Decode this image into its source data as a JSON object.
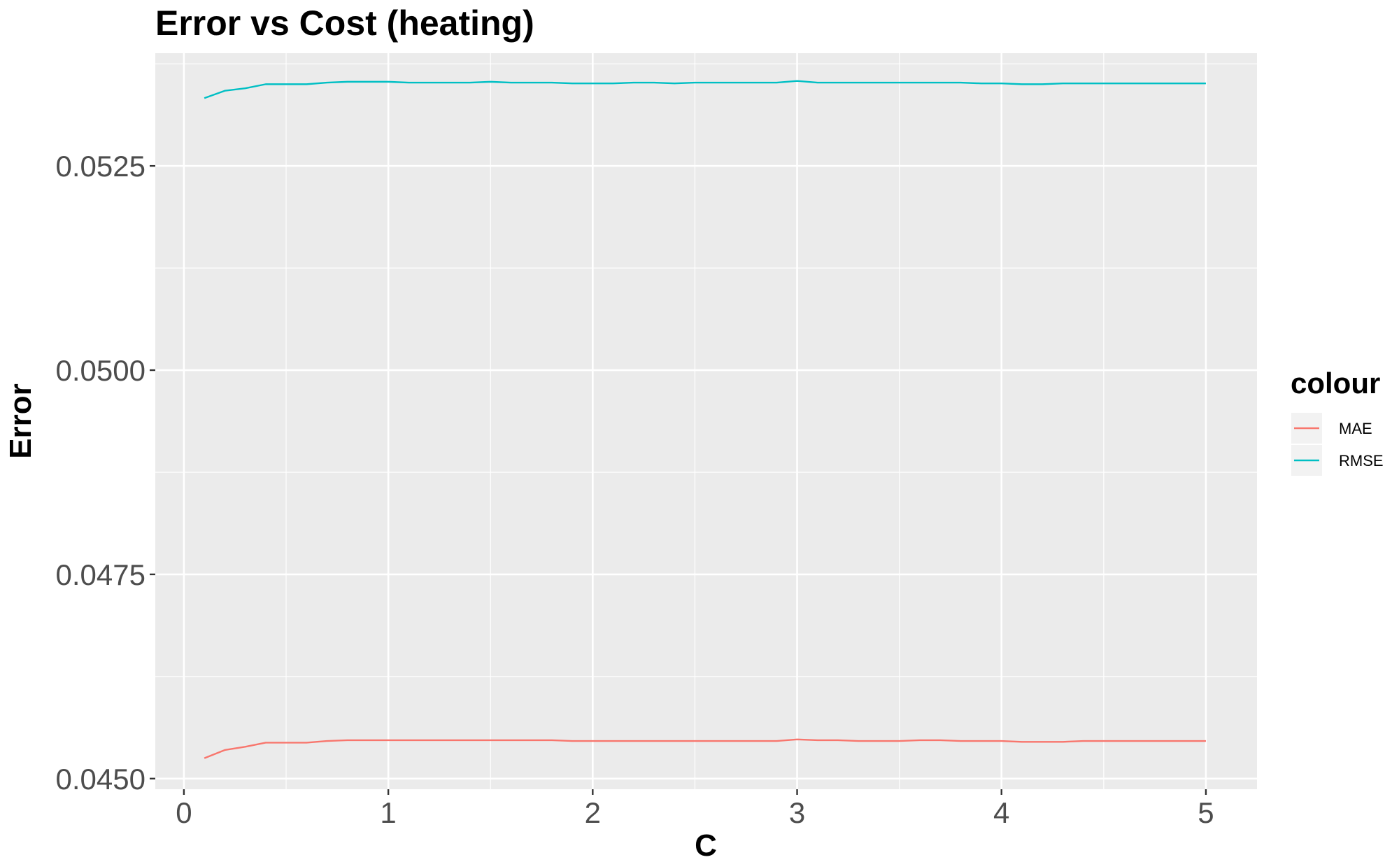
{
  "chart_data": {
    "type": "line",
    "title": "Error vs Cost (heating)",
    "xlabel": "C",
    "ylabel": "Error",
    "xlim": [
      -0.14,
      5.25
    ],
    "ylim": [
      0.04487,
      0.05388
    ],
    "x_ticks": [
      0,
      1,
      2,
      3,
      4,
      5
    ],
    "x_tick_labels": [
      "0",
      "1",
      "2",
      "3",
      "4",
      "5"
    ],
    "y_ticks": [
      0.045,
      0.0475,
      0.05,
      0.0525
    ],
    "y_tick_labels": [
      "0.0450",
      "0.0475",
      "0.0500",
      "0.0525"
    ],
    "grid": true,
    "legend_title": "colour",
    "legend_position": "right",
    "x": [
      0.1,
      0.2,
      0.3,
      0.4,
      0.5,
      0.6,
      0.7,
      0.8,
      0.9,
      1.0,
      1.1,
      1.2,
      1.3,
      1.4,
      1.5,
      1.6,
      1.7,
      1.8,
      1.9,
      2.0,
      2.1,
      2.2,
      2.3,
      2.4,
      2.5,
      2.6,
      2.7,
      2.8,
      2.9,
      3.0,
      3.1,
      3.2,
      3.3,
      3.4,
      3.5,
      3.6,
      3.7,
      3.8,
      3.9,
      4.0,
      4.1,
      4.2,
      4.3,
      4.4,
      4.5,
      4.6,
      4.7,
      4.8,
      4.9,
      5.0
    ],
    "series": [
      {
        "name": "MAE",
        "color": "#F8766D",
        "values": [
          0.04525,
          0.04535,
          0.04539,
          0.04544,
          0.04544,
          0.04544,
          0.04546,
          0.04547,
          0.04547,
          0.04547,
          0.04547,
          0.04547,
          0.04547,
          0.04547,
          0.04547,
          0.04547,
          0.04547,
          0.04547,
          0.04546,
          0.04546,
          0.04546,
          0.04546,
          0.04546,
          0.04546,
          0.04546,
          0.04546,
          0.04546,
          0.04546,
          0.04546,
          0.04548,
          0.04547,
          0.04547,
          0.04546,
          0.04546,
          0.04546,
          0.04547,
          0.04547,
          0.04546,
          0.04546,
          0.04546,
          0.04545,
          0.04545,
          0.04545,
          0.04546,
          0.04546,
          0.04546,
          0.04546,
          0.04546,
          0.04546,
          0.04546
        ]
      },
      {
        "name": "RMSE",
        "color": "#00BFC4",
        "values": [
          0.05333,
          0.05342,
          0.05345,
          0.0535,
          0.0535,
          0.0535,
          0.05352,
          0.05353,
          0.05353,
          0.05353,
          0.05352,
          0.05352,
          0.05352,
          0.05352,
          0.05353,
          0.05352,
          0.05352,
          0.05352,
          0.05351,
          0.05351,
          0.05351,
          0.05352,
          0.05352,
          0.05351,
          0.05352,
          0.05352,
          0.05352,
          0.05352,
          0.05352,
          0.05354,
          0.05352,
          0.05352,
          0.05352,
          0.05352,
          0.05352,
          0.05352,
          0.05352,
          0.05352,
          0.05351,
          0.05351,
          0.0535,
          0.0535,
          0.05351,
          0.05351,
          0.05351,
          0.05351,
          0.05351,
          0.05351,
          0.05351,
          0.05351
        ]
      }
    ]
  }
}
